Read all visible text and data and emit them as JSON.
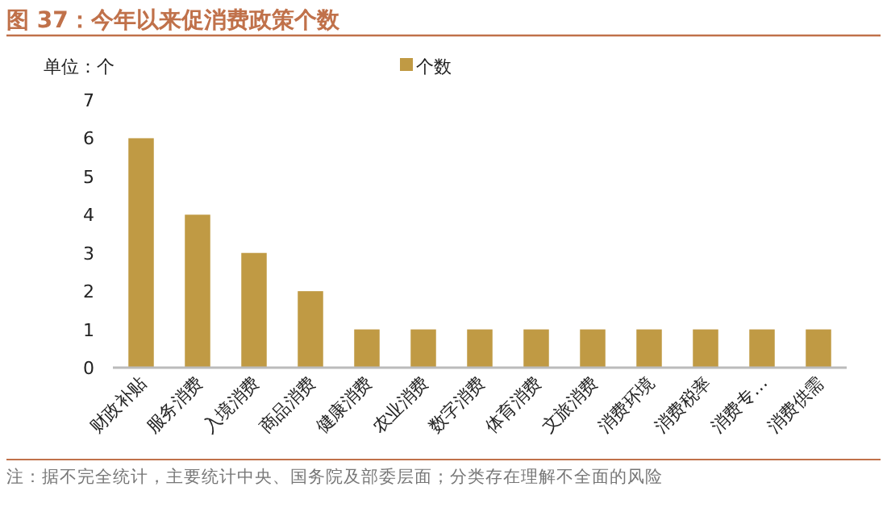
{
  "chart_data": {
    "type": "bar",
    "title": "图 37：今年以来促消费政策个数",
    "ylabel": "单位：个",
    "categories": [
      "财政补贴",
      "服务消费",
      "入境消费",
      "商品消费",
      "健康消费",
      "农业消费",
      "数字消费",
      "体育消费",
      "文旅消费",
      "消费环境",
      "消费税率",
      "消费专…",
      "消费供需"
    ],
    "series": [
      {
        "name": "个数",
        "color": "#c09a44",
        "values": [
          6,
          4,
          3,
          2,
          1,
          1,
          1,
          1,
          1,
          1,
          1,
          1,
          1
        ]
      }
    ],
    "ylim": [
      0,
      7
    ],
    "yticks": [
      0,
      1,
      2,
      3,
      4,
      5,
      6,
      7
    ],
    "legend": "top",
    "annotations": [
      "注：据不完全统计，主要统计中央、国务院及部委层面；分类存在理解不全面的风险"
    ]
  }
}
